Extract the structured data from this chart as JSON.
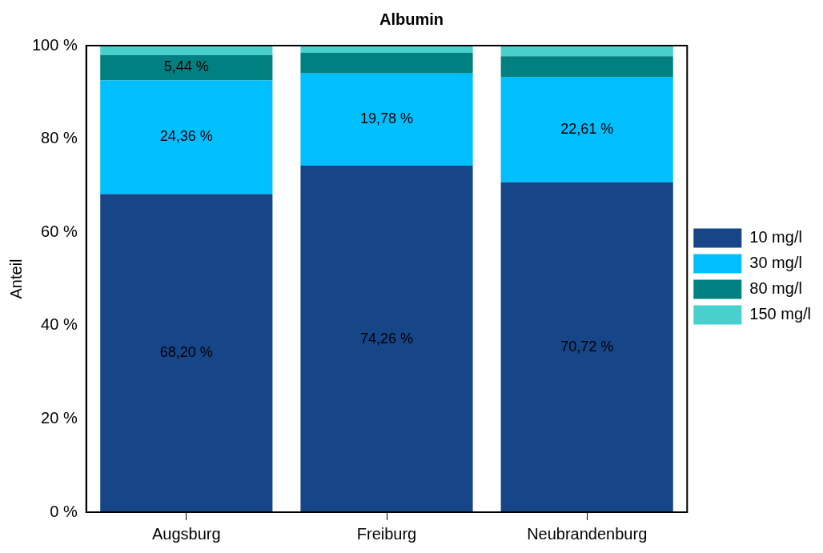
{
  "chart_data": {
    "type": "bar",
    "title": "Albumin",
    "ylabel": "Anteil",
    "stacked": true,
    "categories": [
      "Augsburg",
      "Freiburg",
      "Neubrandenburg"
    ],
    "series": [
      {
        "name": "10 mg/l",
        "color": "#164588",
        "values": [
          68.2,
          74.26,
          70.72
        ],
        "value_labels": [
          "68,20 %",
          "74,26 %",
          "70,72 %"
        ]
      },
      {
        "name": "30 mg/l",
        "color": "#00bfff",
        "values": [
          24.36,
          19.78,
          22.61
        ],
        "value_labels": [
          "24,36 %",
          "19,78 %",
          "22,61 %"
        ]
      },
      {
        "name": "80 mg/l",
        "color": "#008080",
        "values": [
          5.44,
          4.4,
          4.4
        ],
        "value_labels": [
          "5,44 %",
          null,
          null
        ]
      },
      {
        "name": "150 mg/l",
        "color": "#48d1cc",
        "values": [
          2.0,
          1.6,
          2.3
        ],
        "value_labels": [
          null,
          null,
          null
        ]
      }
    ],
    "ylim": [
      0,
      100
    ],
    "yticks": [
      {
        "value": 0,
        "label": "0 %"
      },
      {
        "value": 20,
        "label": "20 %"
      },
      {
        "value": 40,
        "label": "40 %"
      },
      {
        "value": 60,
        "label": "60 %"
      },
      {
        "value": 80,
        "label": "80 %"
      },
      {
        "value": 100,
        "label": "100 %"
      }
    ],
    "grid": false,
    "legend": "right"
  }
}
